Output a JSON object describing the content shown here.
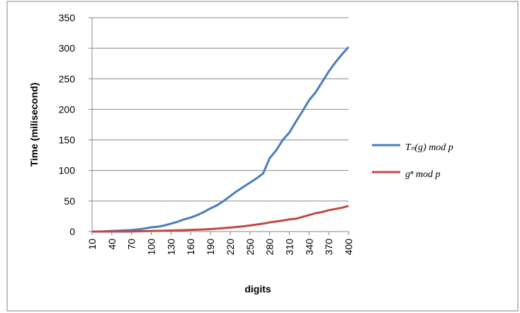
{
  "chart_data": {
    "type": "line",
    "x": [
      10,
      20,
      30,
      40,
      50,
      60,
      70,
      80,
      90,
      100,
      110,
      120,
      130,
      140,
      150,
      160,
      170,
      180,
      190,
      200,
      210,
      220,
      230,
      240,
      250,
      260,
      270,
      280,
      290,
      300,
      310,
      320,
      330,
      340,
      350,
      360,
      370,
      380,
      390,
      400
    ],
    "xlim": [
      10,
      400
    ],
    "xticks": [
      10,
      40,
      70,
      100,
      130,
      160,
      190,
      220,
      250,
      280,
      310,
      340,
      370,
      400
    ],
    "ylim": [
      0,
      350
    ],
    "yticks": [
      0,
      50,
      100,
      150,
      200,
      250,
      300,
      350
    ],
    "grid": true,
    "xlabel": "digits",
    "ylabel": "Time (milisecond)",
    "legend": "right",
    "series": [
      {
        "name": "Tₙ(g) mod p",
        "color": "#4a7ebb",
        "values": [
          0,
          0,
          0.5,
          1,
          1.5,
          2,
          2.5,
          3.5,
          5,
          7,
          8,
          10,
          13,
          16,
          20,
          23,
          27,
          32,
          38,
          43,
          50,
          58,
          66,
          73,
          80,
          87,
          95,
          120,
          133,
          150,
          162,
          180,
          197,
          215,
          228,
          245,
          262,
          277,
          290,
          302
        ]
      },
      {
        "name": "gⁿ mod p",
        "color": "#be4b48",
        "values": [
          0,
          0,
          0,
          0,
          0,
          0,
          0.2,
          0.4,
          0.6,
          1,
          1.2,
          1.4,
          1.7,
          2,
          2.3,
          2.7,
          3,
          3.5,
          4,
          4.8,
          5.6,
          6.5,
          7.5,
          8.5,
          10,
          11.5,
          13,
          15,
          16.5,
          18,
          20,
          21,
          24,
          27,
          30,
          32,
          35,
          37,
          39,
          42
        ]
      }
    ]
  }
}
